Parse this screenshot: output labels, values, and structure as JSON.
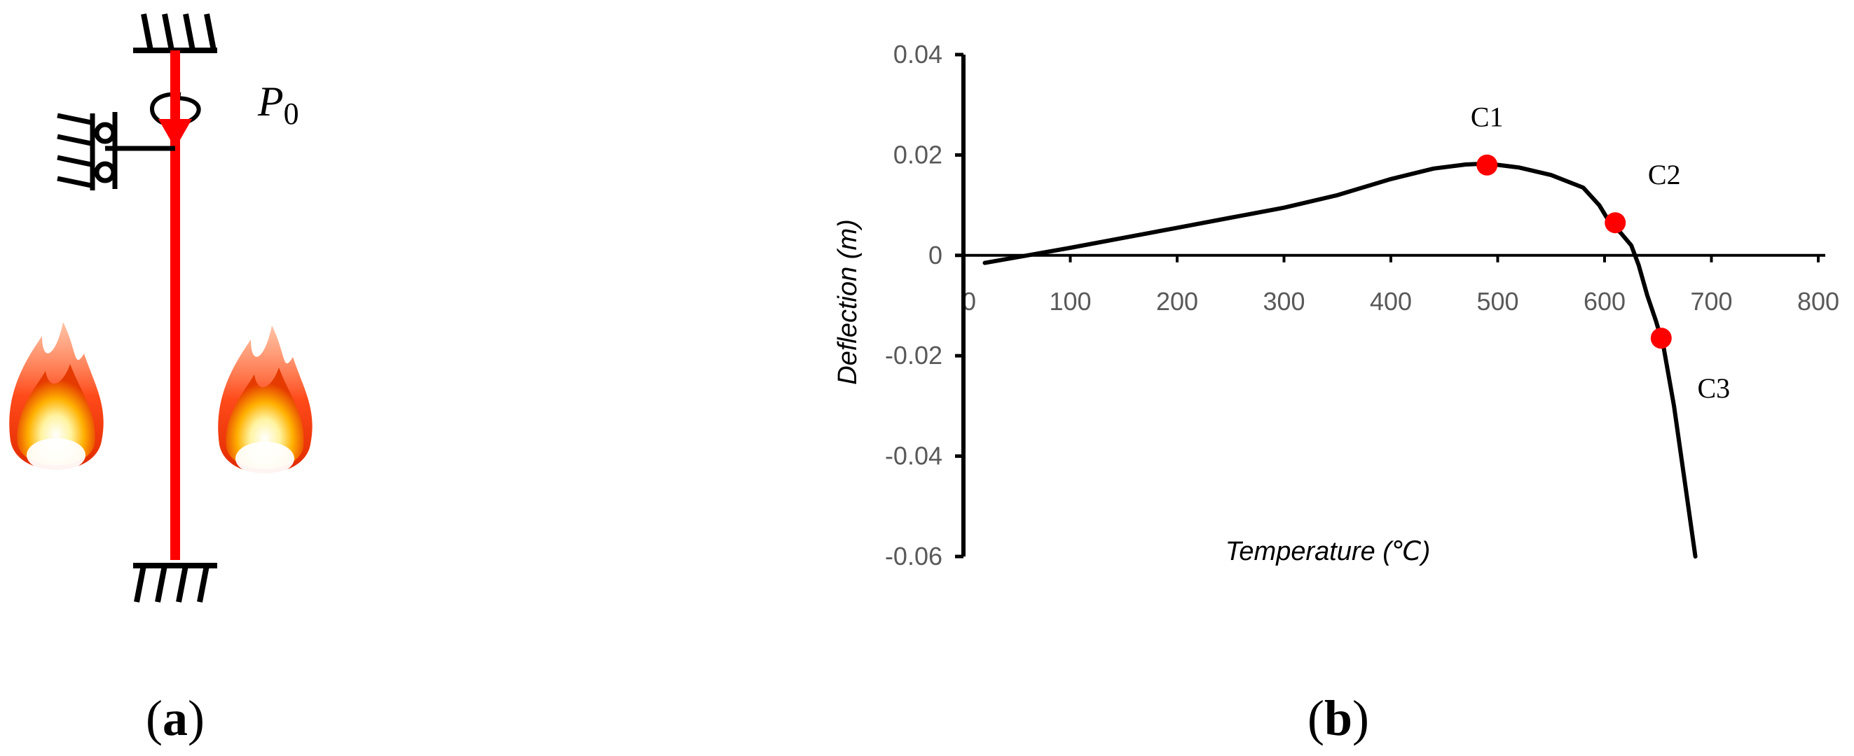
{
  "panel_a": {
    "label_letter": "a",
    "load_symbol": "P",
    "load_subscript": "0",
    "member_color": "#ff0000"
  },
  "panel_b": {
    "label_letter": "b",
    "curve_color": "#000000",
    "marker_color": "#ff0000"
  },
  "chart_data": {
    "type": "line",
    "title": "",
    "xlabel": "Temperature (℃)",
    "ylabel": "Deflection (m)",
    "xlim": [
      0,
      800
    ],
    "ylim": [
      -0.06,
      0.04
    ],
    "x_ticks": [
      0,
      100,
      200,
      300,
      400,
      500,
      600,
      700,
      800
    ],
    "y_ticks": [
      0.04,
      0.02,
      0,
      -0.02,
      -0.04,
      -0.06
    ],
    "y_tick_labels": [
      "0.04",
      "0.02",
      "0",
      "-0.02",
      "-0.04",
      "-0.06"
    ],
    "grid": false,
    "series": [
      {
        "x": [
          20,
          60,
          100,
          150,
          200,
          250,
          300,
          350,
          400,
          440,
          470,
          490,
          520,
          550,
          580,
          595,
          605,
          615,
          625,
          632,
          640,
          648,
          655,
          665,
          675,
          685
        ],
        "y": [
          -0.0015,
          0,
          0.0015,
          0.0035,
          0.0055,
          0.0075,
          0.0095,
          0.012,
          0.0152,
          0.0173,
          0.0181,
          0.0183,
          0.0175,
          0.016,
          0.0135,
          0.01,
          0.0065,
          0.0045,
          0.002,
          -0.002,
          -0.008,
          -0.013,
          -0.018,
          -0.03,
          -0.045,
          -0.06
        ]
      }
    ],
    "points": [
      {
        "label": "C1",
        "x": 490,
        "y": 0.018
      },
      {
        "label": "C2",
        "x": 610,
        "y": 0.0065
      },
      {
        "label": "C3",
        "x": 653,
        "y": -0.0165
      }
    ]
  }
}
